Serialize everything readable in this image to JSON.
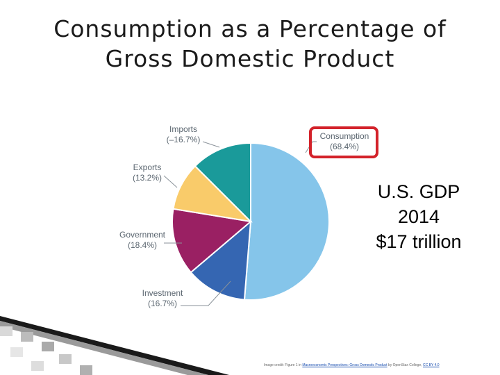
{
  "slide": {
    "title_line1": "Consumption as a Percentage of",
    "title_line2": "Gross Domestic Product",
    "gdp_note": {
      "line1": "U.S. GDP",
      "line2": "2014",
      "line3": "$17 trillion"
    },
    "credit": {
      "prefix": "Image credit: Figure 1 in ",
      "link1": "Macroeconomic Perspectives: Gross Domestic Product",
      "middle": " by OpenStax College, ",
      "link2": "CC BY 4.0"
    },
    "highlight_color": "#d3222a"
  },
  "chart_data": {
    "type": "pie",
    "title": "",
    "slices": [
      {
        "name": "Consumption",
        "label": "(68.4%)",
        "value": 68.4,
        "color": "#85c5ea"
      },
      {
        "name": "Investment",
        "label": "(16.7%)",
        "value": 16.7,
        "color": "#3566b2"
      },
      {
        "name": "Government",
        "label": "(18.4%)",
        "value": 18.4,
        "color": "#9a2063"
      },
      {
        "name": "Exports",
        "label": "(13.2%)",
        "value": 13.2,
        "color": "#f9cb6a"
      },
      {
        "name": "Imports",
        "label": "(–16.7%)",
        "value": -16.7,
        "color": "#1a9a9a"
      }
    ],
    "highlighted_slice": "Consumption"
  }
}
